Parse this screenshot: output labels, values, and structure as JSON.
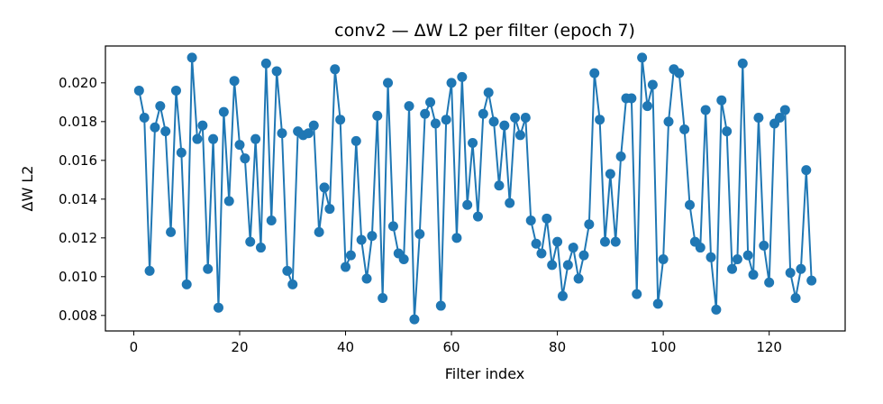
{
  "chart_data": {
    "type": "line",
    "title": "conv2 — ΔW L2 per filter (epoch 7)",
    "xlabel": "Filter index",
    "ylabel": "ΔW L2",
    "xlim": [
      -5.35,
      134.35
    ],
    "ylim": [
      0.0072,
      0.0219
    ],
    "xticks": [
      0,
      20,
      40,
      60,
      80,
      100,
      120
    ],
    "xtick_labels": [
      "0",
      "20",
      "40",
      "60",
      "80",
      "100",
      "120"
    ],
    "yticks": [
      0.008,
      0.01,
      0.012,
      0.014,
      0.016,
      0.018,
      0.02
    ],
    "ytick_labels": [
      "0.008",
      "0.010",
      "0.012",
      "0.014",
      "0.016",
      "0.018",
      "0.020"
    ],
    "grid": false,
    "legend": "none",
    "series_color": "#1f77b4",
    "marker": "circle",
    "x_start": 1,
    "values": [
      0.0196,
      0.0182,
      0.0103,
      0.0177,
      0.0188,
      0.0175,
      0.0123,
      0.0196,
      0.0164,
      0.0096,
      0.0213,
      0.0171,
      0.0178,
      0.0104,
      0.0171,
      0.0084,
      0.0185,
      0.0139,
      0.0201,
      0.0168,
      0.0161,
      0.0118,
      0.0171,
      0.0115,
      0.021,
      0.0129,
      0.0206,
      0.0174,
      0.0103,
      0.0096,
      0.0175,
      0.0173,
      0.0174,
      0.0178,
      0.0123,
      0.0146,
      0.0135,
      0.0207,
      0.0181,
      0.0105,
      0.0111,
      0.017,
      0.0119,
      0.0099,
      0.0121,
      0.0183,
      0.0089,
      0.02,
      0.0126,
      0.0112,
      0.0109,
      0.0188,
      0.0078,
      0.0122,
      0.0184,
      0.019,
      0.0179,
      0.0085,
      0.0181,
      0.02,
      0.012,
      0.0203,
      0.0137,
      0.0169,
      0.0131,
      0.0184,
      0.0195,
      0.018,
      0.0147,
      0.0178,
      0.0138,
      0.0182,
      0.0173,
      0.0182,
      0.0129,
      0.0117,
      0.0112,
      0.013,
      0.0106,
      0.0118,
      0.009,
      0.0106,
      0.0115,
      0.0099,
      0.0111,
      0.0127,
      0.0205,
      0.0181,
      0.0118,
      0.0153,
      0.0118,
      0.0162,
      0.0192,
      0.0192,
      0.0091,
      0.0213,
      0.0188,
      0.0199,
      0.0086,
      0.0109,
      0.018,
      0.0207,
      0.0205,
      0.0176,
      0.0137,
      0.0118,
      0.0115,
      0.0186,
      0.011,
      0.0083,
      0.0191,
      0.0175,
      0.0104,
      0.0109,
      0.021,
      0.0111,
      0.0101,
      0.0182,
      0.0116,
      0.0097,
      0.0179,
      0.0182,
      0.0186,
      0.0102,
      0.0089,
      0.0104,
      0.0155,
      0.0098
    ]
  }
}
